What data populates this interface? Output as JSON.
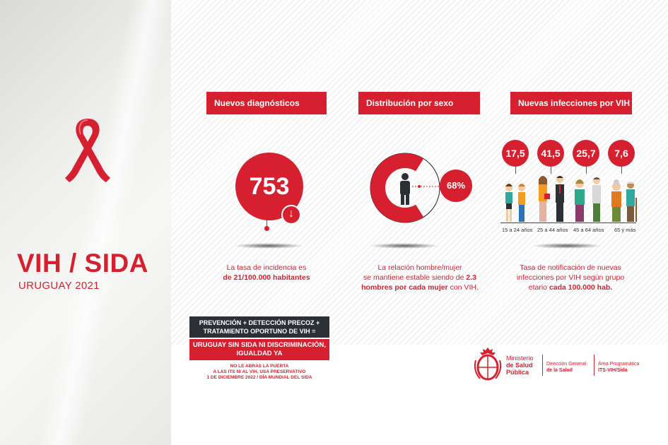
{
  "title": "VIH / SIDA",
  "subtitle": "URUGUAY 2021",
  "sections": [
    {
      "header": "Nuevos diagnósticos",
      "value": "753",
      "trend_icon": "arrow-down-icon",
      "caption_line1": "La tasa de incidencia es",
      "caption_bold": "de 21/100.000 habitantes"
    },
    {
      "header": "Distribución por sexo",
      "percent_label": "68%",
      "percent_value": 68,
      "icon": "man-icon",
      "caption_line1": "La relación hombre/mujer",
      "caption_line2_pre": "se mantiene estable siendo de ",
      "caption_line2_bold": "2.3",
      "caption_line3_bold": "hombres por cada mujer",
      "caption_line3_post": " con VIH."
    },
    {
      "header": "Nuevas infecciones por VIH",
      "rates": [
        {
          "value": "17,5",
          "age": "15 a 24 años"
        },
        {
          "value": "41,5",
          "age": "25 a 44 años"
        },
        {
          "value": "25,7",
          "age": "45 a 64 años"
        },
        {
          "value": "7,6",
          "age": "65 y más"
        }
      ],
      "caption_line1": "Tasa de notificación de nuevas",
      "caption_line2": "infecciones por VIH según grupo",
      "caption_line3_pre": "etario ",
      "caption_line3_bold": "cada 100.000 hab."
    }
  ],
  "slogan": {
    "dark_line1": "PREVENCIÓN + DETECCIÓN PRECOZ +",
    "dark_line2": "TRATAMIENTO OPORTUNO DE VIH =",
    "red_line1": "URUGUAY SIN SIDA NI DISCRIMINACIÓN,",
    "red_line2": "IGUALDAD YA",
    "small_line1": "NO LE ABRAS LA PUERTA",
    "small_line2": "A LAS ITS NI AL VIH, USA PRESERVATIVO",
    "small_line3": "1 DE DICIEMBRE 2022 / DÍA MUNDIAL DEL SIDA"
  },
  "ministry": {
    "line1": "Ministerio",
    "line2": "de Salud",
    "line3": "Pública",
    "direccion_line1": "Dirección General",
    "direccion_line2": "de la Salud",
    "area_line1": "Área Programática",
    "area_line2": "ITS-VIH/Sida"
  },
  "colors": {
    "accent": "#d7202f",
    "dark": "#2b2f36"
  }
}
